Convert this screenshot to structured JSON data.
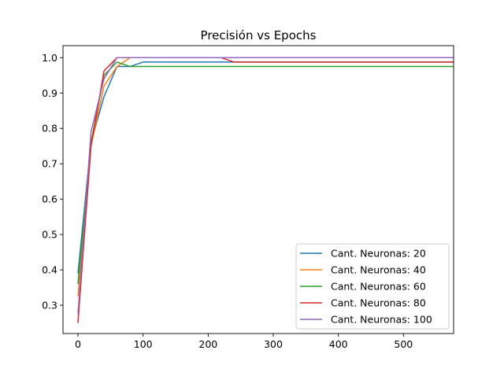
{
  "chart_data": {
    "type": "line",
    "title": "Precisión vs Epochs",
    "xlabel": "",
    "ylabel": "",
    "xlim": [
      -23,
      577
    ],
    "ylim": [
      0.22,
      1.034
    ],
    "xticks": [
      0,
      100,
      200,
      300,
      400,
      500
    ],
    "yticks": [
      0.3,
      0.4,
      0.5,
      0.6,
      0.7,
      0.8,
      0.9,
      1.0
    ],
    "ytick_labels": [
      "0.3",
      "0.4",
      "0.5",
      "0.6",
      "0.7",
      "0.8",
      "0.9",
      "1.0"
    ],
    "grid": false,
    "legend_position": "lower-right",
    "series": [
      {
        "name": "Cant. Neuronas: 20",
        "color": "#1f77b4",
        "x": [
          0,
          20,
          40,
          60,
          80,
          100,
          120,
          140,
          160,
          180,
          200,
          220,
          240,
          577
        ],
        "y": [
          0.39,
          0.76,
          0.89,
          0.975,
          0.975,
          0.9875,
          0.9875,
          0.9875,
          0.9875,
          0.9875,
          0.9875,
          0.9875,
          0.9875,
          0.9875
        ]
      },
      {
        "name": "Cant. Neuronas: 40",
        "color": "#ff7f0e",
        "x": [
          0,
          20,
          40,
          60,
          80,
          100,
          577
        ],
        "y": [
          0.325,
          0.75,
          0.92,
          0.975,
          1.0,
          1.0,
          1.0
        ]
      },
      {
        "name": "Cant. Neuronas: 60",
        "color": "#2ca02c",
        "x": [
          0,
          20,
          40,
          60,
          80,
          100,
          577
        ],
        "y": [
          0.36,
          0.76,
          0.95,
          0.9875,
          0.975,
          0.975,
          0.975
        ]
      },
      {
        "name": "Cant. Neuronas: 80",
        "color": "#d62728",
        "x": [
          0,
          20,
          40,
          60,
          80,
          100,
          220,
          240,
          577
        ],
        "y": [
          0.25,
          0.75,
          0.9625,
          1.0,
          1.0,
          1.0,
          1.0,
          0.9875,
          0.9875
        ]
      },
      {
        "name": "Cant. Neuronas: 100",
        "color": "#9467bd",
        "x": [
          0,
          20,
          40,
          60,
          80,
          100,
          577
        ],
        "y": [
          0.275,
          0.79,
          0.94,
          1.0,
          1.0,
          1.0,
          1.0
        ]
      }
    ]
  }
}
